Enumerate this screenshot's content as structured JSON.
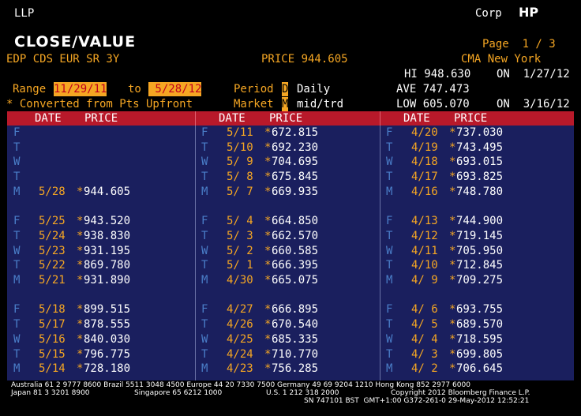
{
  "header": {
    "ticker": "LLP",
    "market_sector": "Corp",
    "function": "HP",
    "title": "CLOSE/VALUE",
    "page": "Page  1 / 3",
    "security": "EDP CDS EUR SR 3Y",
    "price_label": "PRICE 944.605",
    "source": "CMA New York",
    "hi_label": "HI 948.630",
    "hi_on": "ON  1/27/12",
    "ave_label": "AVE 747.473",
    "range_label": "Range",
    "range_start": "11/29/11",
    "to_label": "to",
    "range_end": " 5/28/12",
    "period_label": "Period",
    "period_code": "D",
    "period_value": "Daily",
    "converted_note": "* Converted from Pts Upfront",
    "market_label": "Market",
    "market_code": "M",
    "market_value": "mid/trd",
    "low_label": "LOW 605.070",
    "low_on": "ON  3/16/12"
  },
  "table": {
    "col_headers": [
      {
        "date": "DATE",
        "price": "PRICE"
      },
      {
        "date": "DATE",
        "price": "PRICE"
      },
      {
        "date": "DATE",
        "price": "PRICE"
      }
    ],
    "columns": [
      [
        {
          "dow": "F",
          "date": "",
          "price": ""
        },
        {
          "dow": "T",
          "date": "",
          "price": ""
        },
        {
          "dow": "W",
          "date": "",
          "price": ""
        },
        {
          "dow": "T",
          "date": "",
          "price": ""
        },
        {
          "dow": "M",
          "date": "5/28",
          "price": "944.605"
        },
        null,
        {
          "dow": "F",
          "date": "5/25",
          "price": "943.520"
        },
        {
          "dow": "T",
          "date": "5/24",
          "price": "938.830"
        },
        {
          "dow": "W",
          "date": "5/23",
          "price": "931.195"
        },
        {
          "dow": "T",
          "date": "5/22",
          "price": "869.780"
        },
        {
          "dow": "M",
          "date": "5/21",
          "price": "931.890"
        },
        null,
        {
          "dow": "F",
          "date": "5/18",
          "price": "899.515"
        },
        {
          "dow": "T",
          "date": "5/17",
          "price": "878.555"
        },
        {
          "dow": "W",
          "date": "5/16",
          "price": "840.030"
        },
        {
          "dow": "T",
          "date": "5/15",
          "price": "796.775"
        },
        {
          "dow": "M",
          "date": "5/14",
          "price": "728.180"
        }
      ],
      [
        {
          "dow": "F",
          "date": "5/11",
          "price": "672.815"
        },
        {
          "dow": "T",
          "date": "5/10",
          "price": "692.230"
        },
        {
          "dow": "W",
          "date": "5/ 9",
          "price": "704.695"
        },
        {
          "dow": "T",
          "date": "5/ 8",
          "price": "675.845"
        },
        {
          "dow": "M",
          "date": "5/ 7",
          "price": "669.935"
        },
        null,
        {
          "dow": "F",
          "date": "5/ 4",
          "price": "664.850"
        },
        {
          "dow": "T",
          "date": "5/ 3",
          "price": "662.570"
        },
        {
          "dow": "W",
          "date": "5/ 2",
          "price": "660.585"
        },
        {
          "dow": "T",
          "date": "5/ 1",
          "price": "666.395"
        },
        {
          "dow": "M",
          "date": "4/30",
          "price": "665.075"
        },
        null,
        {
          "dow": "F",
          "date": "4/27",
          "price": "666.895"
        },
        {
          "dow": "T",
          "date": "4/26",
          "price": "670.540"
        },
        {
          "dow": "W",
          "date": "4/25",
          "price": "685.335"
        },
        {
          "dow": "T",
          "date": "4/24",
          "price": "710.770"
        },
        {
          "dow": "M",
          "date": "4/23",
          "price": "756.285"
        }
      ],
      [
        {
          "dow": "F",
          "date": "4/20",
          "price": "737.030"
        },
        {
          "dow": "T",
          "date": "4/19",
          "price": "743.495"
        },
        {
          "dow": "W",
          "date": "4/18",
          "price": "693.015"
        },
        {
          "dow": "T",
          "date": "4/17",
          "price": "693.825"
        },
        {
          "dow": "M",
          "date": "4/16",
          "price": "748.780"
        },
        null,
        {
          "dow": "F",
          "date": "4/13",
          "price": "744.900"
        },
        {
          "dow": "T",
          "date": "4/12",
          "price": "719.145"
        },
        {
          "dow": "W",
          "date": "4/11",
          "price": "705.950"
        },
        {
          "dow": "T",
          "date": "4/10",
          "price": "712.845"
        },
        {
          "dow": "M",
          "date": "4/ 9",
          "price": "709.275"
        },
        null,
        {
          "dow": "F",
          "date": "4/ 6",
          "price": "693.755"
        },
        {
          "dow": "T",
          "date": "4/ 5",
          "price": "689.570"
        },
        {
          "dow": "W",
          "date": "4/ 4",
          "price": "718.595"
        },
        {
          "dow": "T",
          "date": "4/ 3",
          "price": "699.805"
        },
        {
          "dow": "M",
          "date": "4/ 2",
          "price": "706.645"
        }
      ]
    ]
  },
  "footer": {
    "line1": "Australia 61 2 9777 8600 Brazil 5511 3048 4500 Europe 44 20 7330 7500 Germany 49 69 9204 1210 Hong Kong 852 2977 6000",
    "line2a": "Japan 81 3 3201 8900",
    "line2b": "Singapore 65 6212 1000",
    "line2c": "U.S. 1 212 318 2000",
    "line2d": "Copyright 2012 Bloomberg Finance L.P.",
    "line3": "SN 747101 BST  GMT+1:00 G372-261-0 29-May-2012 12:52:21"
  },
  "colors": {
    "background": "#000000",
    "amber": "#f5a623",
    "table_bg": "#1a1f5e",
    "header_red": "#b8192a",
    "dow_blue": "#4a7ec8"
  }
}
